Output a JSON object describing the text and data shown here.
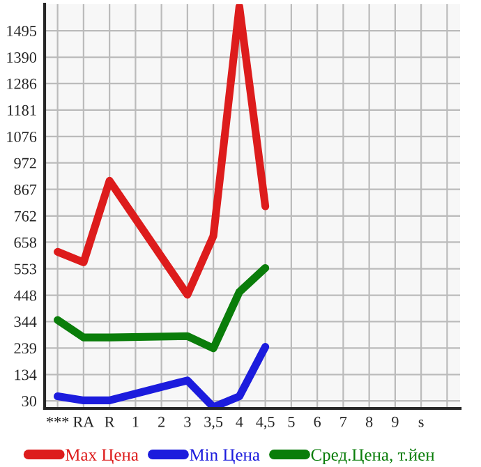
{
  "chart_data": {
    "type": "line",
    "categories": [
      "***",
      "RA",
      "R",
      "1",
      "2",
      "3",
      "3,5",
      "4",
      "4,5",
      "5",
      "6",
      "7",
      "8",
      "9",
      "s",
      null
    ],
    "series": [
      {
        "name": "Max Цена",
        "color": "#dd1c1c",
        "values": [
          620,
          578,
          901,
          null,
          null,
          450,
          683,
          1590,
          800,
          null,
          null,
          null,
          null,
          null,
          null,
          null
        ]
      },
      {
        "name": "Min Цена",
        "color": "#1c1cdd",
        "values": [
          48,
          32,
          32,
          null,
          null,
          111,
          5,
          48,
          244,
          null,
          null,
          null,
          null,
          null,
          null,
          null
        ]
      },
      {
        "name": "Сред.Цена, т.йен",
        "color": "#0a7d0a",
        "values": [
          350,
          281,
          281,
          null,
          null,
          286,
          238,
          461,
          556,
          null,
          null,
          null,
          null,
          null,
          null,
          null
        ]
      }
    ],
    "ylim": [
      0,
      1600
    ],
    "yticks": [
      30,
      134,
      239,
      344,
      448,
      553,
      658,
      762,
      867,
      972,
      1076,
      1181,
      1286,
      1390,
      1495
    ],
    "grid": true,
    "legend": "bottom",
    "marker": "none",
    "line_style": "solid"
  }
}
